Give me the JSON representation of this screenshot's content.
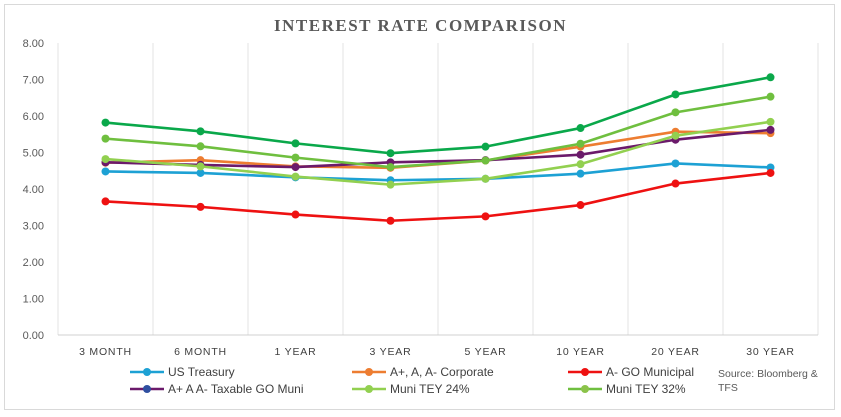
{
  "chart_data": {
    "type": "line",
    "title": "INTEREST RATE COMPARISON",
    "categories": [
      "3 MONTH",
      "6 MONTH",
      "1 YEAR",
      "3 YEAR",
      "5 YEAR",
      "10 YEAR",
      "20 YEAR",
      "30 YEAR"
    ],
    "ylim": [
      0,
      8
    ],
    "yticks": [
      "0.00",
      "1.00",
      "2.00",
      "3.00",
      "4.00",
      "5.00",
      "6.00",
      "7.00",
      "8.00"
    ],
    "grid": "vertical category gridlines",
    "legend_position": "bottom",
    "series": [
      {
        "name": "US Treasury",
        "color": "#1da1d4",
        "values": [
          4.48,
          4.44,
          4.32,
          4.24,
          4.28,
          4.42,
          4.7,
          4.59
        ]
      },
      {
        "name": "A+, A, A- Corporate",
        "color": "#ed7d31",
        "values": [
          4.72,
          4.79,
          4.62,
          4.58,
          4.78,
          5.16,
          5.57,
          5.53
        ]
      },
      {
        "name": "A- GO Municipal",
        "color": "#ee1111",
        "values": [
          3.66,
          3.51,
          3.3,
          3.13,
          3.25,
          3.56,
          4.15,
          4.44
        ]
      },
      {
        "name": "A+ A A- Taxable GO Muni",
        "color": "#6b1a6b",
        "values": [
          4.73,
          4.66,
          4.6,
          4.73,
          4.79,
          4.94,
          5.35,
          5.62
        ]
      },
      {
        "name": "Muni TEY 24%",
        "color": "#92d050",
        "values": [
          4.82,
          4.62,
          4.34,
          4.12,
          4.28,
          4.68,
          5.46,
          5.84
        ]
      },
      {
        "name": "Muni TEY 32%",
        "color": "#6fbf3f",
        "values": [
          5.38,
          5.17,
          4.86,
          4.6,
          4.78,
          5.24,
          6.1,
          6.53
        ]
      },
      {
        "name": "",
        "color": "#0aa84a",
        "values": [
          5.82,
          5.58,
          5.25,
          4.98,
          5.16,
          5.67,
          6.59,
          7.06
        ]
      }
    ],
    "legend_marker_colors": [
      "#1da1d4",
      "#ed7d31",
      "#ee1111",
      "#2f4fa0",
      "#92d050",
      "#8bc34a"
    ],
    "source": "Source: Bloomberg & TFS"
  }
}
